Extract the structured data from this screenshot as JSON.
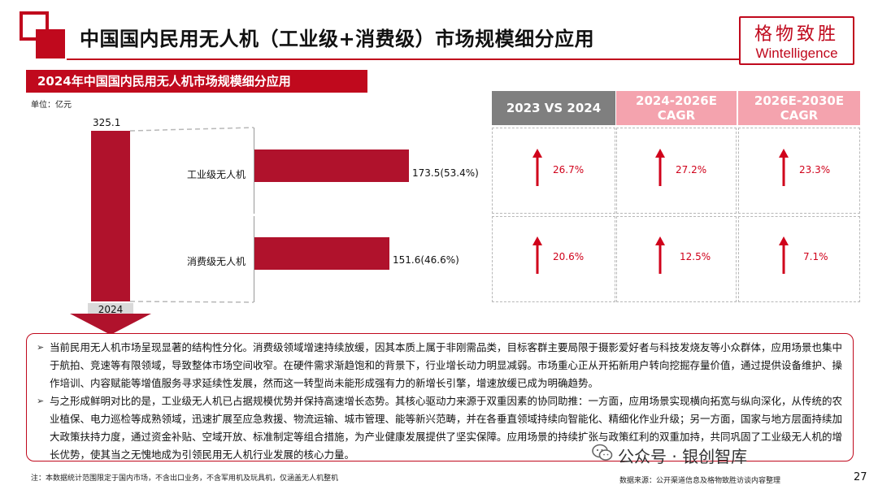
{
  "header": {
    "title": "中国国内民用无人机（工业级+消费级）市场规模细分应用",
    "brand_cn": "格物致胜",
    "brand_en": "Wintelligence"
  },
  "section": {
    "banner": "2024年中国国内民用无人机市场规模细分应用",
    "unit": "单位：亿元"
  },
  "chart_data": {
    "type": "bar",
    "title": "2024年中国国内民用无人机市场规模细分应用",
    "unit": "亿元",
    "total": {
      "label": "2024",
      "value": 325.1,
      "value_label": "325.1"
    },
    "categories": [
      "工业级无人机",
      "消费级无人机"
    ],
    "values": [
      173.5,
      151.6
    ],
    "shares": [
      "53.4%",
      "46.6%"
    ],
    "value_labels": [
      "173.5(53.4%)",
      "151.6(46.6%)"
    ]
  },
  "table": {
    "headers": [
      "2023 VS 2024",
      "2024-2026E CAGR",
      "2026E-2030E CAGR"
    ],
    "rows": [
      {
        "category": "工业级无人机",
        "values": [
          "26.7%",
          "27.2%",
          "23.3%"
        ]
      },
      {
        "category": "消费级无人机",
        "values": [
          "20.6%",
          "12.5%",
          "7.1%"
        ]
      }
    ],
    "trend": "up"
  },
  "analysis": {
    "bullet": "➢",
    "paragraphs": [
      "当前民用无人机市场呈现显著的结构性分化。消费级领域增速持续放缓，因其本质上属于非刚需品类，目标客群主要局限于摄影爱好者与科技发烧友等小众群体，应用场景也集中于航拍、竞速等有限领域，导致整体市场空间收窄。在硬件需求渐趋饱和的背景下，行业增长动力明显减弱。市场重心正从开拓新用户转向挖掘存量价值，通过提供设备维护、操作培训、内容赋能等增值服务寻求延续性发展，然而这一转型尚未能形成强有力的新增长引擎，增速放缓已成为明确趋势。",
      "与之形成鲜明对比的是，工业级无人机已占据规模优势并保持高速增长态势。其核心驱动力来源于双重因素的协同助推：一方面，应用场景实现横向拓宽与纵向深化，从传统的农业植保、电力巡检等成熟领域，迅速扩展至应急救援、物流运输、城市管理、能等新兴范畴，并在各垂直领域持续向智能化、精细化作业升级；另一方面，国家与地方层面持续加大政策扶持力度，通过资金补贴、空域开放、标准制定等组合措施，为产业健康发展提供了坚实保障。应用场景的持续扩张与政策红利的双重加持，共同巩固了工业级无人机的增长优势，使其当之无愧地成为引领民用无人机行业发展的核心力量。"
    ]
  },
  "footer": {
    "note": "注：本数据统计范围限定于国内市场，不含出口业务，不含军用机及玩具机，仅涵盖无人机整机",
    "watermark": "公众号 · 银创智库",
    "source": "数据来源：公开渠道信息及格物致胜访谈内容整理",
    "page": "27"
  },
  "colors": {
    "accent": "#c0091d",
    "bar": "#b0122c",
    "header_gray": "#7f7f7f",
    "header_pink": "#f4a3ae",
    "trend": "#d0021b"
  }
}
